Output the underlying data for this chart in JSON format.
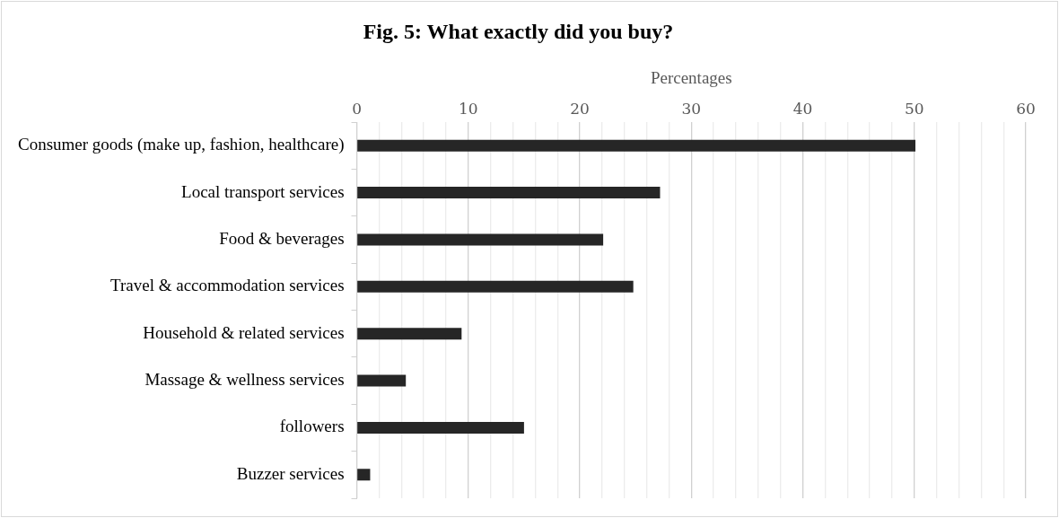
{
  "chart_data": {
    "type": "bar",
    "orientation": "horizontal",
    "title": "Fig. 5: What exactly did you buy?",
    "xlabel": "Percentages",
    "categories": [
      "Consumer goods (make up, fashion, healthcare)",
      "Local transport services",
      "Food & beverages",
      "Travel & accommodation services",
      "Household & related services",
      "Massage & wellness services",
      "followers",
      "Buzzer services"
    ],
    "values": [
      50.1,
      27.2,
      22.1,
      24.8,
      9.4,
      4.4,
      15.0,
      1.2
    ],
    "color": "#262626",
    "xlim": [
      0,
      60
    ],
    "xticks": [
      0,
      {
        "value": 2,
        "label": null
      },
      {
        "value": 4,
        "label": null
      },
      {
        "value": 6,
        "label": null
      },
      {
        "value": 8,
        "label": null
      },
      10,
      {
        "value": 12,
        "label": null
      },
      {
        "value": 14,
        "label": null
      },
      {
        "value": 16,
        "label": null
      },
      {
        "value": 18,
        "label": null
      },
      20,
      {
        "value": 22,
        "label": null
      },
      {
        "value": 24,
        "label": null
      },
      {
        "value": 26,
        "label": null
      },
      {
        "value": 28,
        "label": null
      },
      30,
      {
        "value": 32,
        "label": null
      },
      {
        "value": 34,
        "label": null
      },
      {
        "value": 36,
        "label": null
      },
      {
        "value": 38,
        "label": null
      },
      40,
      {
        "value": 42,
        "label": null
      },
      {
        "value": 44,
        "label": null
      },
      {
        "value": 46,
        "label": null
      },
      {
        "value": 48,
        "label": null
      },
      50,
      {
        "value": 52,
        "label": null
      },
      {
        "value": 54,
        "label": null
      },
      {
        "value": 56,
        "label": null
      },
      {
        "value": 58,
        "label": null
      },
      60
    ],
    "grid": "x",
    "legend": false
  }
}
